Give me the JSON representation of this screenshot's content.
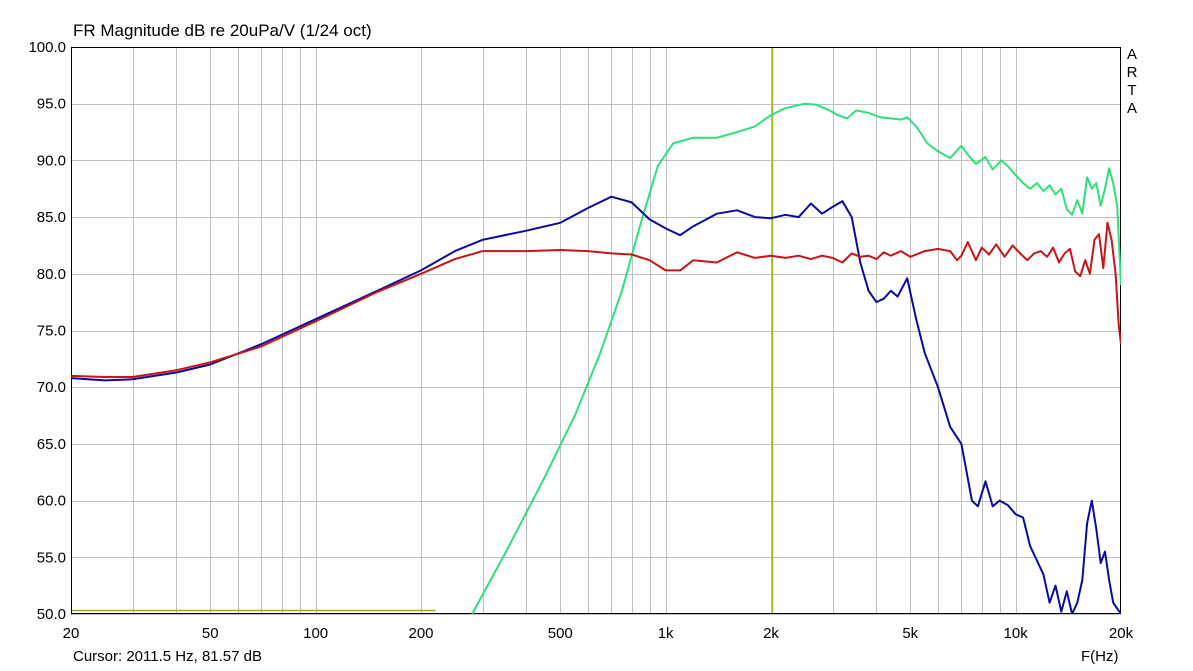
{
  "chart_data": {
    "type": "line",
    "title": "FR Magnitude dB re 20uPa/V (1/24 oct)",
    "xlabel": "F(Hz)",
    "ylabel": "",
    "x_scale": "log",
    "xlim": [
      20,
      20000
    ],
    "ylim": [
      50,
      100
    ],
    "grid": true,
    "legend": "none",
    "watermark": "ARTA",
    "cursor_text": "Cursor: 2011.5 Hz, 81.57 dB",
    "cursor_x": 2011.5,
    "x_ticks": [
      {
        "value": 20,
        "label": "20"
      },
      {
        "value": 50,
        "label": "50"
      },
      {
        "value": 100,
        "label": "100"
      },
      {
        "value": 200,
        "label": "200"
      },
      {
        "value": 500,
        "label": "500"
      },
      {
        "value": 1000,
        "label": "1k"
      },
      {
        "value": 2000,
        "label": "2k"
      },
      {
        "value": 5000,
        "label": "5k"
      },
      {
        "value": 10000,
        "label": "10k"
      },
      {
        "value": 20000,
        "label": "20k"
      }
    ],
    "y_ticks": [
      {
        "value": 100,
        "label": "100.0"
      },
      {
        "value": 95,
        "label": "95.0"
      },
      {
        "value": 90,
        "label": "90.0"
      },
      {
        "value": 85,
        "label": "85.0"
      },
      {
        "value": 80,
        "label": "80.0"
      },
      {
        "value": 75,
        "label": "75.0"
      },
      {
        "value": 70,
        "label": "70.0"
      },
      {
        "value": 65,
        "label": "65.0"
      },
      {
        "value": 60,
        "label": "60.0"
      },
      {
        "value": 55,
        "label": "55.0"
      },
      {
        "value": 50,
        "label": "50.0"
      }
    ],
    "colors": {
      "grid": "#c0c0c0",
      "cursor": "#a8a81c",
      "frame": "#000000"
    },
    "series": [
      {
        "color": "#2fe07a",
        "x": [
          280,
          350,
          450,
          550,
          650,
          750,
          850,
          950,
          1050,
          1200,
          1400,
          1600,
          1800,
          2000,
          2200,
          2500,
          2700,
          2900,
          3100,
          3300,
          3500,
          3800,
          4100,
          4400,
          4700,
          4900,
          5200,
          5600,
          6000,
          6500,
          7000,
          7300,
          7700,
          8200,
          8600,
          9100,
          9500,
          10000,
          10500,
          11000,
          11500,
          12000,
          12500,
          13000,
          13500,
          14000,
          14500,
          15000,
          15500,
          16000,
          16500,
          17000,
          17500,
          18000,
          18500,
          19000,
          19500,
          20000
        ],
        "y": [
          50.0,
          55.5,
          62.0,
          67.5,
          73.0,
          78.5,
          84.5,
          89.5,
          91.5,
          92.0,
          92.0,
          92.5,
          93.0,
          94.0,
          94.6,
          95.0,
          94.9,
          94.5,
          94.0,
          93.7,
          94.4,
          94.2,
          93.8,
          93.7,
          93.6,
          93.8,
          93.0,
          91.5,
          90.8,
          90.2,
          91.3,
          90.5,
          89.7,
          90.3,
          89.2,
          90.0,
          89.5,
          88.7,
          88.0,
          87.5,
          88.0,
          87.3,
          87.8,
          87.0,
          87.5,
          85.7,
          85.2,
          86.5,
          85.3,
          88.5,
          87.5,
          88.0,
          86.0,
          87.5,
          89.3,
          88.0,
          86.0,
          79.0
        ]
      },
      {
        "color": "#0a0aa0",
        "x": [
          20,
          25,
          30,
          40,
          50,
          70,
          100,
          150,
          200,
          250,
          300,
          400,
          500,
          600,
          700,
          800,
          900,
          1000,
          1100,
          1200,
          1400,
          1600,
          1800,
          2000,
          2200,
          2400,
          2600,
          2800,
          3000,
          3200,
          3400,
          3600,
          3800,
          4000,
          4200,
          4400,
          4600,
          4900,
          5200,
          5500,
          6000,
          6500,
          7000,
          7500,
          7800,
          8200,
          8600,
          9000,
          9500,
          10000,
          10500,
          11000,
          12000,
          12500,
          13000,
          13500,
          14000,
          14500,
          15000,
          15500,
          16000,
          16500,
          17000,
          17500,
          18000,
          18500,
          19000,
          20000
        ],
        "y": [
          70.8,
          70.6,
          70.7,
          71.3,
          72.0,
          73.8,
          76.0,
          78.5,
          80.3,
          82.0,
          83.0,
          83.8,
          84.5,
          85.8,
          86.8,
          86.3,
          84.8,
          84.0,
          83.4,
          84.2,
          85.3,
          85.6,
          85.0,
          84.9,
          85.2,
          85.0,
          86.2,
          85.3,
          85.9,
          86.4,
          85.0,
          81.0,
          78.5,
          77.5,
          77.8,
          78.5,
          78.0,
          79.6,
          76.0,
          73.0,
          70.0,
          66.5,
          65.0,
          60.0,
          59.5,
          61.7,
          59.5,
          60.0,
          59.6,
          58.8,
          58.5,
          56.0,
          53.5,
          51.0,
          52.5,
          50.2,
          52.0,
          50.0,
          51.0,
          53.0,
          58.0,
          60.0,
          57.5,
          54.5,
          55.5,
          53.0,
          51.0,
          50.0
        ]
      },
      {
        "color": "#c81414",
        "x": [
          20,
          25,
          30,
          40,
          50,
          70,
          100,
          150,
          200,
          250,
          300,
          400,
          500,
          600,
          700,
          800,
          900,
          1000,
          1100,
          1200,
          1400,
          1600,
          1800,
          2000,
          2200,
          2400,
          2600,
          2800,
          3000,
          3200,
          3400,
          3600,
          3800,
          4000,
          4200,
          4400,
          4700,
          5000,
          5500,
          6000,
          6500,
          6800,
          7000,
          7300,
          7700,
          8000,
          8400,
          8800,
          9300,
          9800,
          10300,
          10800,
          11300,
          11800,
          12300,
          12800,
          13300,
          13800,
          14300,
          14800,
          15300,
          15800,
          16300,
          16800,
          17300,
          17800,
          18300,
          18800,
          19300,
          19700,
          20000
        ],
        "y": [
          71.0,
          70.9,
          70.9,
          71.5,
          72.2,
          73.6,
          75.8,
          78.4,
          80.0,
          81.3,
          82.0,
          82.0,
          82.1,
          82.0,
          81.8,
          81.7,
          81.2,
          80.3,
          80.3,
          81.2,
          81.0,
          81.9,
          81.4,
          81.6,
          81.4,
          81.6,
          81.3,
          81.6,
          81.4,
          81.0,
          81.8,
          81.5,
          81.6,
          81.3,
          81.9,
          81.6,
          82.0,
          81.5,
          82.0,
          82.2,
          82.0,
          81.2,
          81.6,
          82.8,
          81.2,
          82.3,
          81.7,
          82.6,
          81.5,
          82.5,
          81.8,
          81.2,
          81.8,
          82.0,
          81.5,
          82.3,
          81.0,
          81.8,
          82.2,
          80.2,
          79.8,
          81.2,
          80.0,
          83.0,
          83.5,
          80.5,
          84.5,
          83.0,
          80.0,
          75.5,
          73.8
        ]
      }
    ]
  }
}
